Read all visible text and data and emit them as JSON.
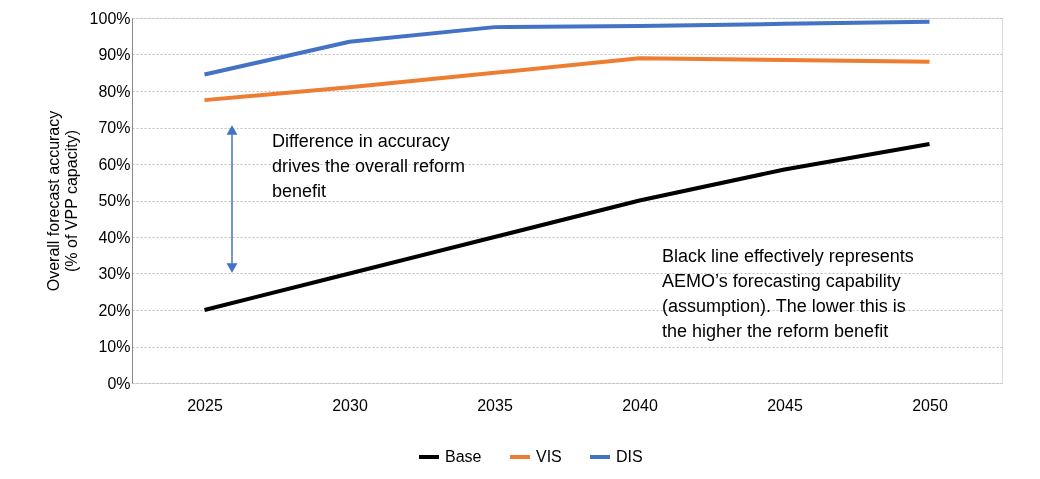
{
  "chart_data": {
    "type": "line",
    "ylabel": "Overall forecast accuracy\n(% of VPP capacity)",
    "categories": [
      "2025",
      "2030",
      "2035",
      "2040",
      "2045",
      "2050"
    ],
    "series": [
      {
        "name": "Base",
        "color": "#000000",
        "values": [
          20,
          30,
          40,
          50,
          58.5,
          65.5
        ]
      },
      {
        "name": "VIS",
        "color": "#ed7d31",
        "values": [
          77.5,
          81,
          85,
          89,
          88.5,
          88
        ]
      },
      {
        "name": "DIS",
        "color": "#4472c4",
        "values": [
          84.5,
          93.5,
          97.5,
          97.8,
          98.4,
          99
        ]
      }
    ],
    "ylim": [
      0,
      100
    ],
    "yticks": [
      {
        "value": 0,
        "label": "0%"
      },
      {
        "value": 10,
        "label": "10%"
      },
      {
        "value": 20,
        "label": "20%"
      },
      {
        "value": 30,
        "label": "30%"
      },
      {
        "value": 40,
        "label": "40%"
      },
      {
        "value": 50,
        "label": "50%"
      },
      {
        "value": 60,
        "label": "60%"
      },
      {
        "value": 70,
        "label": "70%"
      },
      {
        "value": 80,
        "label": "80%"
      },
      {
        "value": 90,
        "label": "90%"
      },
      {
        "value": 100,
        "label": "100%"
      }
    ],
    "grid": "y",
    "legend": "bottom",
    "marker": "none",
    "line_style": "solid",
    "annotations": [
      "Difference in accuracy\ndrives the overall reform\nbenefit",
      "Black line effectively represents\nAEMO’s forecasting capability\n(assumption). The lower this is\nthe higher the reform benefit"
    ]
  }
}
